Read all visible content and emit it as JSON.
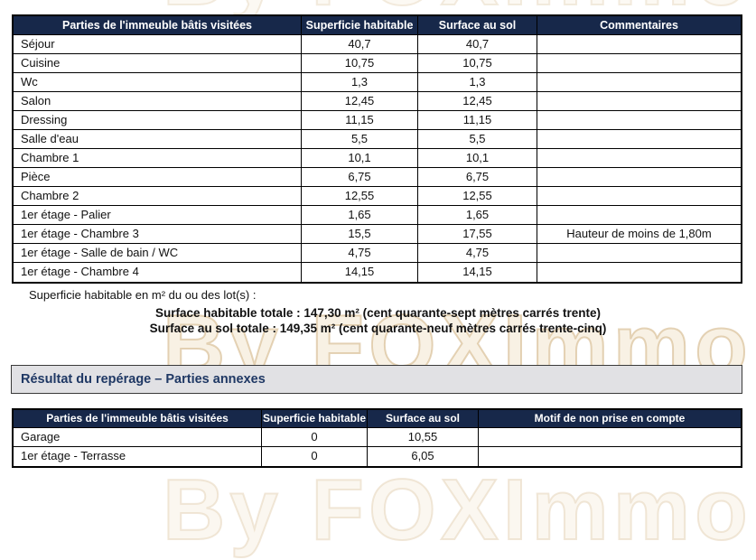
{
  "colors": {
    "header_bg": "#17284a",
    "header_text": "#ffffff",
    "section_bg": "#e1e1e4",
    "section_text": "#1f3864",
    "watermark": "#d8bd8f"
  },
  "watermark": {
    "text": "By FOXImmo"
  },
  "table1": {
    "headers": {
      "col1": "Parties de l'immeuble bâtis visitées",
      "col2": "Superficie habitable",
      "col3": "Surface au sol",
      "col4": "Commentaires"
    },
    "rows": [
      {
        "name": "Séjour",
        "superficie": "40,7",
        "surface": "40,7",
        "commentaire": ""
      },
      {
        "name": "Cuisine",
        "superficie": "10,75",
        "surface": "10,75",
        "commentaire": ""
      },
      {
        "name": "Wc",
        "superficie": "1,3",
        "surface": "1,3",
        "commentaire": ""
      },
      {
        "name": "Salon",
        "superficie": "12,45",
        "surface": "12,45",
        "commentaire": ""
      },
      {
        "name": "Dressing",
        "superficie": "11,15",
        "surface": "11,15",
        "commentaire": ""
      },
      {
        "name": "Salle d'eau",
        "superficie": "5,5",
        "surface": "5,5",
        "commentaire": ""
      },
      {
        "name": "Chambre 1",
        "superficie": "10,1",
        "surface": "10,1",
        "commentaire": ""
      },
      {
        "name": "Pièce",
        "superficie": "6,75",
        "surface": "6,75",
        "commentaire": ""
      },
      {
        "name": "Chambre 2",
        "superficie": "12,55",
        "surface": "12,55",
        "commentaire": ""
      },
      {
        "name": "1er étage - Palier",
        "superficie": "1,65",
        "surface": "1,65",
        "commentaire": ""
      },
      {
        "name": "1er étage - Chambre 3",
        "superficie": "15,5",
        "surface": "17,55",
        "commentaire": "Hauteur de moins de 1,80m"
      },
      {
        "name": "1er étage - Salle de bain / WC",
        "superficie": "4,75",
        "surface": "4,75",
        "commentaire": ""
      },
      {
        "name": "1er étage - Chambre 4",
        "superficie": "14,15",
        "surface": "14,15",
        "commentaire": ""
      }
    ]
  },
  "notes": {
    "intro": "Superficie habitable en m² du ou des lot(s) :",
    "total_habitable": "Surface habitable totale : 147,30 m² (cent quarante-sept mètres carrés trente)",
    "total_sol": "Surface au sol totale : 149,35 m² (cent quarante-neuf mètres carrés trente-cinq)"
  },
  "section": {
    "title": "Résultat du repérage – Parties annexes"
  },
  "table2": {
    "headers": {
      "col1": "Parties de l'immeuble bâtis visitées",
      "col2": "Superficie habitable",
      "col3": "Surface au sol",
      "col4": "Motif de non prise en compte"
    },
    "rows": [
      {
        "name": "Garage",
        "superficie": "0",
        "surface": "10,55",
        "motif": ""
      },
      {
        "name": "1er étage - Terrasse",
        "superficie": "0",
        "surface": "6,05",
        "motif": ""
      }
    ]
  }
}
